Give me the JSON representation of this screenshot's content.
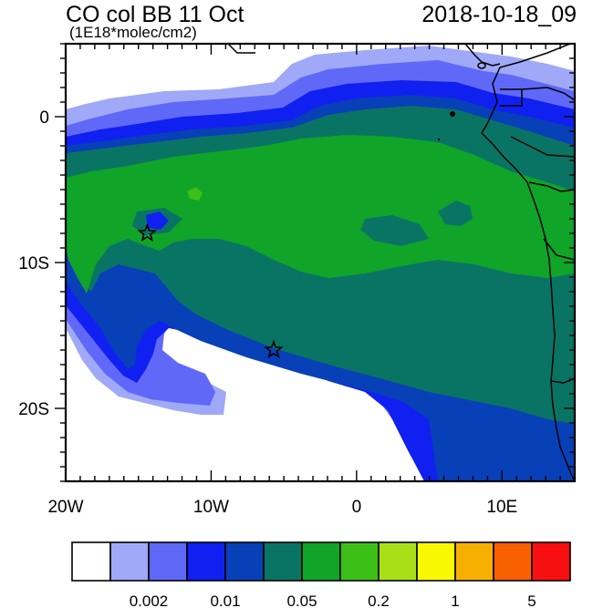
{
  "header": {
    "title": "CO col BB 11 Oct",
    "units": "(1E18*molec/cm2)",
    "timestamp": "2018-10-18_09"
  },
  "axes": {
    "lon_ticks": [
      {
        "value": -20,
        "label": "20W"
      },
      {
        "value": -10,
        "label": "10W"
      },
      {
        "value": 0,
        "label": "0"
      },
      {
        "value": 10,
        "label": "10E"
      }
    ],
    "lat_ticks": [
      {
        "value": 0,
        "label": "0"
      },
      {
        "value": -10,
        "label": "10S"
      },
      {
        "value": -20,
        "label": "20S"
      }
    ],
    "lon_range": [
      -20,
      15
    ],
    "lat_range": [
      -25,
      5
    ]
  },
  "markers": [
    {
      "name": "star-marker-west",
      "lon": -14.4,
      "lat": -8.0
    },
    {
      "name": "star-marker-south",
      "lon": -5.7,
      "lat": -16.0
    }
  ],
  "colorbar": {
    "colors": [
      "#ffffff",
      "#a0a8f8",
      "#6068f8",
      "#1020f0",
      "#0840b8",
      "#0a7464",
      "#10a428",
      "#3cc018",
      "#a8e018",
      "#f8f800",
      "#f8b000",
      "#f86000",
      "#f81010"
    ],
    "labels": [
      "0.002",
      "0.01",
      "0.05",
      "0.2",
      "1",
      "5"
    ]
  }
}
